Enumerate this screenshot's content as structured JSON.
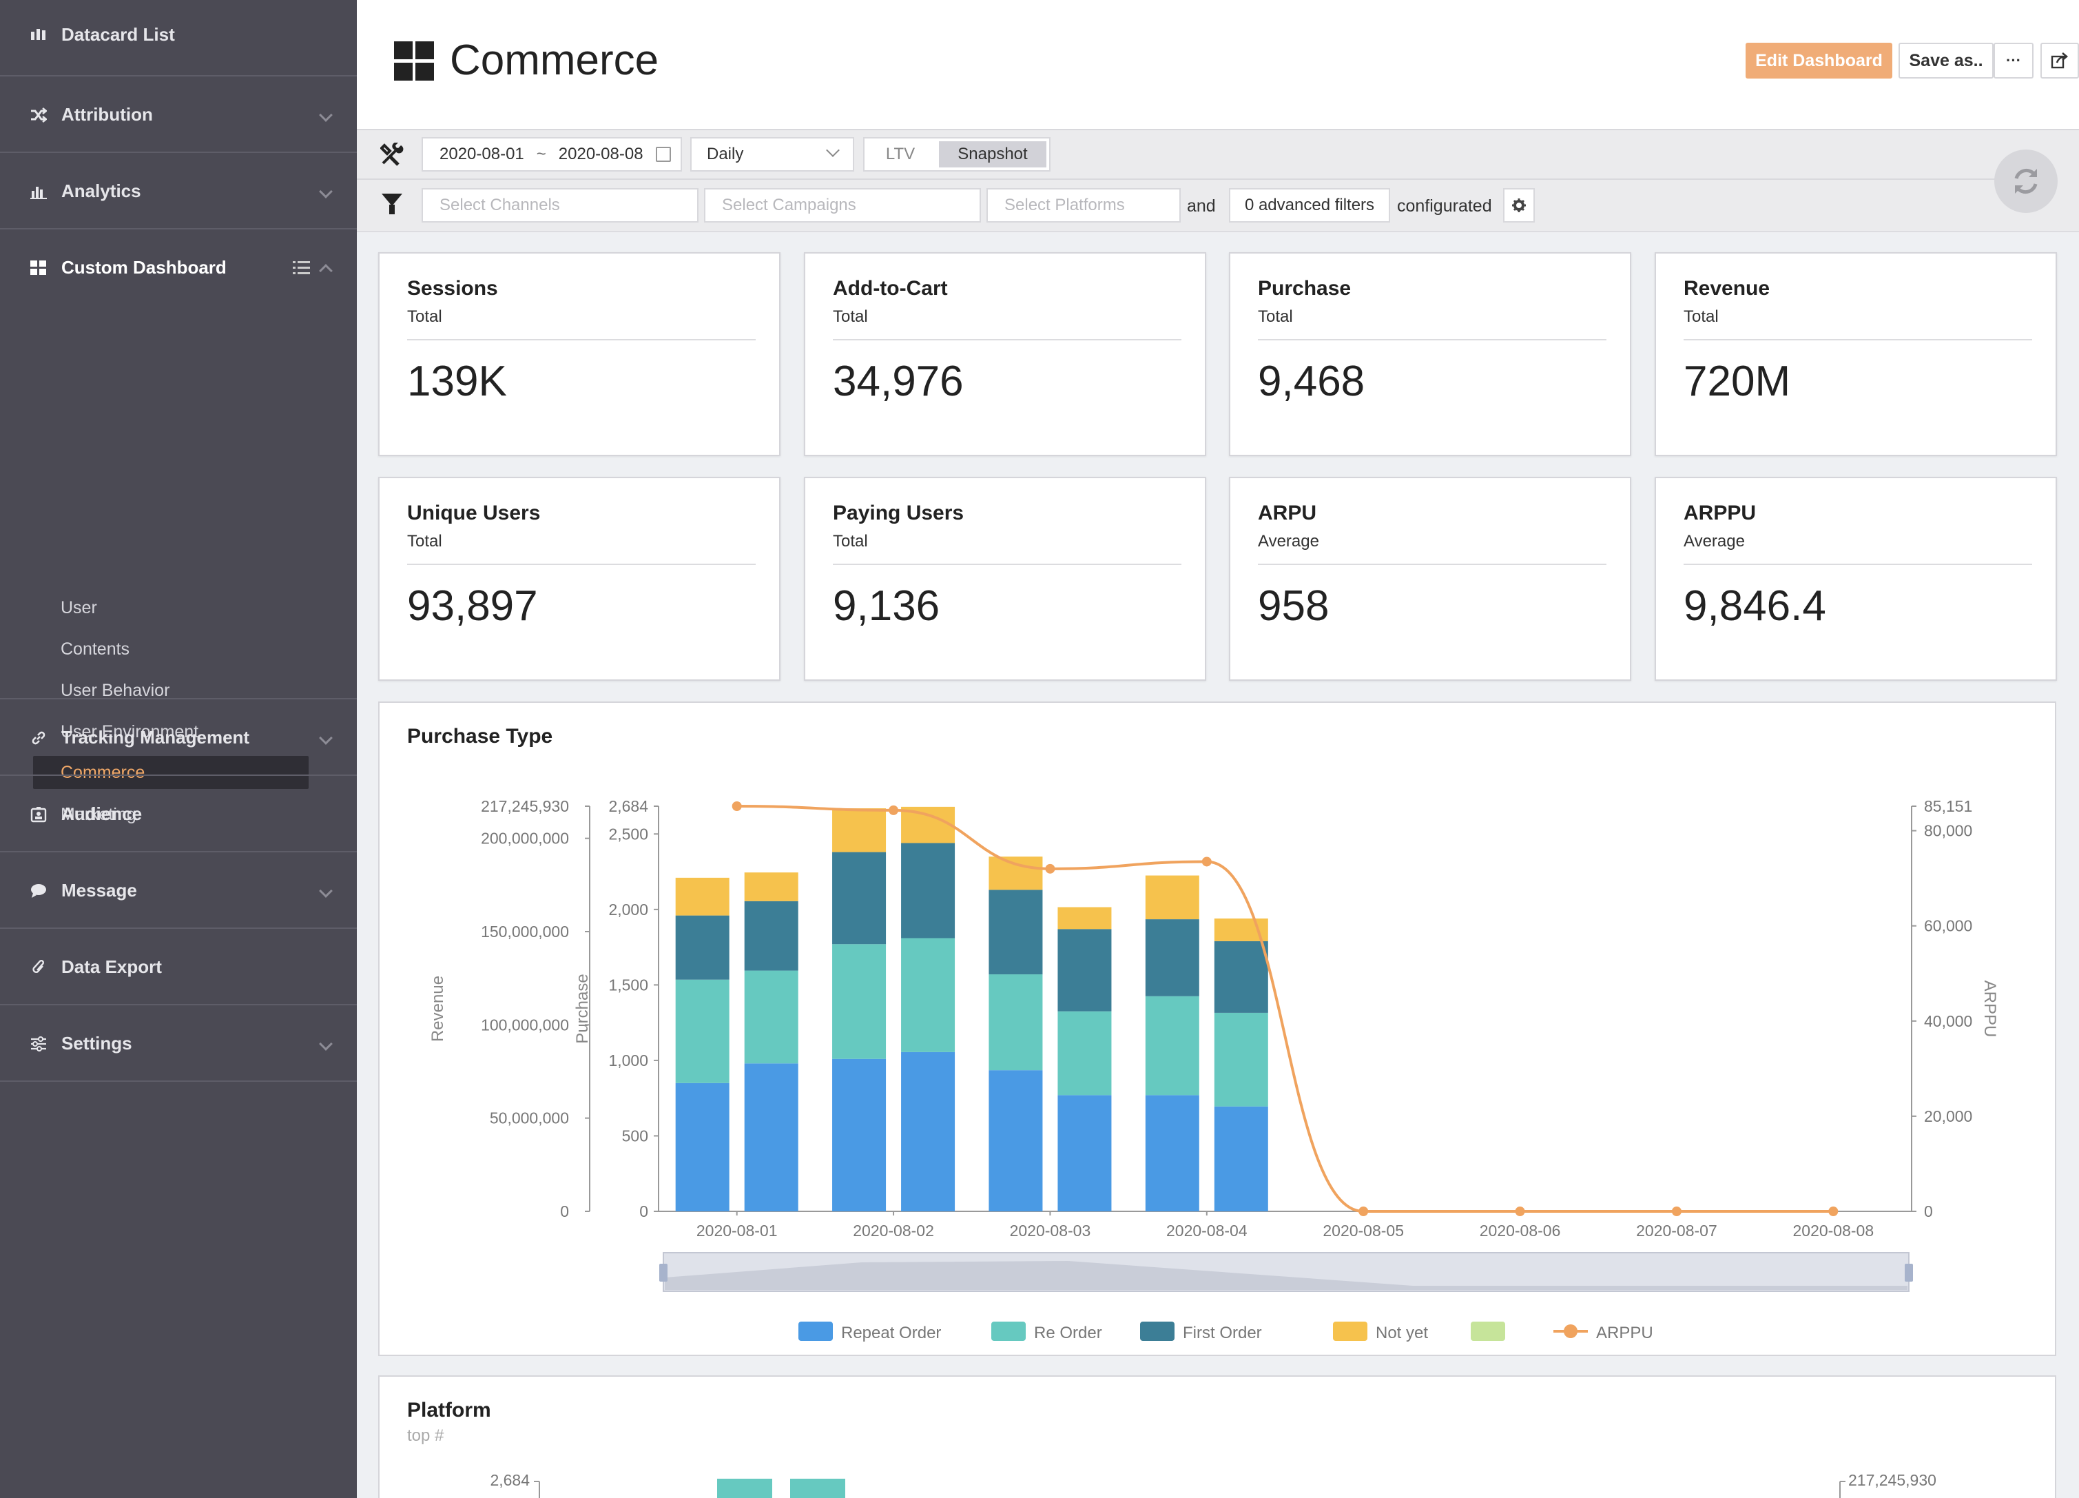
{
  "sidebar": {
    "datacard": {
      "label": "Datacard List",
      "icon": "bar-list-icon"
    },
    "attribution": {
      "label": "Attribution",
      "icon": "shuffle-icon"
    },
    "analytics": {
      "label": "Analytics",
      "icon": "bar-chart-icon"
    },
    "custom": {
      "label": "Custom Dashboard",
      "icon": "grid-icon",
      "items": [
        {
          "label": "User"
        },
        {
          "label": "Contents"
        },
        {
          "label": "User Behavior"
        },
        {
          "label": "User Environment"
        },
        {
          "label": "Commerce"
        },
        {
          "label": "Marketing"
        }
      ]
    },
    "tracking": {
      "label": "Tracking Management",
      "icon": "link-icon"
    },
    "audience": {
      "label": "Audience",
      "icon": "id-card-icon"
    },
    "message": {
      "label": "Message",
      "icon": "chat-bubble-icon"
    },
    "export": {
      "label": "Data Export",
      "icon": "paperclip-icon"
    },
    "settings": {
      "label": "Settings",
      "icon": "sliders-icon"
    }
  },
  "header": {
    "title": "Commerce",
    "edit_label": "Edit Dashboard",
    "save_label": "Save as..",
    "more_label": "···"
  },
  "filters": {
    "date_from": "2020-08-01",
    "date_sep": "~",
    "date_to": "2020-08-08",
    "period": "Daily",
    "ltv_label": "LTV",
    "snapshot_label": "Snapshot",
    "channels_placeholder": "Select Channels",
    "campaigns_placeholder": "Select Campaigns",
    "platforms_placeholder": "Select Platforms",
    "and_label": "and",
    "advanced_label": "0 advanced filters",
    "configured_label": "configurated"
  },
  "cards": [
    {
      "title": "Sessions",
      "sub": "Total",
      "value": "139K"
    },
    {
      "title": "Add-to-Cart",
      "sub": "Total",
      "value": "34,976"
    },
    {
      "title": "Purchase",
      "sub": "Total",
      "value": "9,468"
    },
    {
      "title": "Revenue",
      "sub": "Total",
      "value": "720M"
    },
    {
      "title": "Unique Users",
      "sub": "Total",
      "value": "93,897"
    },
    {
      "title": "Paying Users",
      "sub": "Total",
      "value": "9,136"
    },
    {
      "title": "ARPU",
      "sub": "Average",
      "value": "958"
    },
    {
      "title": "ARPPU",
      "sub": "Average",
      "value": "9,846.4"
    }
  ],
  "purchase_panel": {
    "title": "Purchase Type"
  },
  "platform_panel": {
    "title": "Platform",
    "sub": "top #"
  },
  "colors": {
    "repeat": "#4a9ae4",
    "reorder": "#66c9c0",
    "first": "#3c7e96",
    "notyet": "#f6c24d",
    "extra": "#c6e49a",
    "arppu": "#f0a35e",
    "accent": "#f0a868"
  },
  "chart_data": [
    {
      "type": "bar",
      "title": "Purchase Type",
      "categories": [
        "2020-08-01",
        "2020-08-02",
        "2020-08-03",
        "2020-08-04",
        "2020-08-05",
        "2020-08-06",
        "2020-08-07",
        "2020-08-08"
      ],
      "stacked": true,
      "groups_per_category": 2,
      "series": [
        {
          "name": "Repeat Order",
          "color": "#4a9ae4",
          "values": [
            [
              850,
              980
            ],
            [
              1010,
              1055
            ],
            [
              935,
              770
            ],
            [
              770,
              695
            ],
            [
              0,
              0
            ],
            [
              0,
              0
            ],
            [
              0,
              0
            ],
            [
              0,
              0
            ]
          ]
        },
        {
          "name": "Re Order",
          "color": "#66c9c0",
          "values": [
            [
              685,
              615
            ],
            [
              760,
              755
            ],
            [
              635,
              555
            ],
            [
              655,
              620
            ],
            [
              0,
              0
            ],
            [
              0,
              0
            ],
            [
              0,
              0
            ],
            [
              0,
              0
            ]
          ]
        },
        {
          "name": "First Order",
          "color": "#3c7e96",
          "values": [
            [
              425,
              460
            ],
            [
              610,
              630
            ],
            [
              560,
              545
            ],
            [
              510,
              475
            ],
            [
              0,
              0
            ],
            [
              0,
              0
            ],
            [
              0,
              0
            ],
            [
              0,
              0
            ]
          ]
        },
        {
          "name": "Not yet",
          "color": "#f6c24d",
          "values": [
            [
              250,
              190
            ],
            [
              290,
              240
            ],
            [
              220,
              145
            ],
            [
              290,
              150
            ],
            [
              0,
              0
            ],
            [
              0,
              0
            ],
            [
              0,
              0
            ],
            [
              0,
              0
            ]
          ]
        },
        {
          "name": "",
          "color": "#c6e49a",
          "values": [
            [
              0,
              0
            ],
            [
              0,
              0
            ],
            [
              0,
              0
            ],
            [
              0,
              0
            ],
            [
              0,
              0
            ],
            [
              0,
              0
            ],
            [
              0,
              0
            ],
            [
              0,
              0
            ]
          ]
        }
      ],
      "line_series": {
        "name": "ARPPU",
        "color": "#f0a35e",
        "values": [
          85151,
          84300,
          72000,
          73500,
          0,
          0,
          0,
          0
        ]
      },
      "axes": {
        "revenue": {
          "label": "Revenue",
          "ticks": [
            "217,245,930",
            "200,000,000",
            "150,000,000",
            "100,000,000",
            "50,000,000",
            "0"
          ],
          "max": 217245930
        },
        "purchase": {
          "label": "Purchase",
          "ticks": [
            "2,684",
            "2,500",
            "2,000",
            "1,500",
            "1,000",
            "500",
            "0"
          ],
          "max": 2684
        },
        "arppu": {
          "label": "ARPPU",
          "ticks": [
            "85,151",
            "80,000",
            "60,000",
            "40,000",
            "20,000",
            "0"
          ],
          "max": 85151
        }
      },
      "legend": "bottom"
    },
    {
      "type": "bar",
      "title": "Platform",
      "axes": {
        "left_top": "2,684",
        "right_top": "217,245,930"
      }
    }
  ]
}
